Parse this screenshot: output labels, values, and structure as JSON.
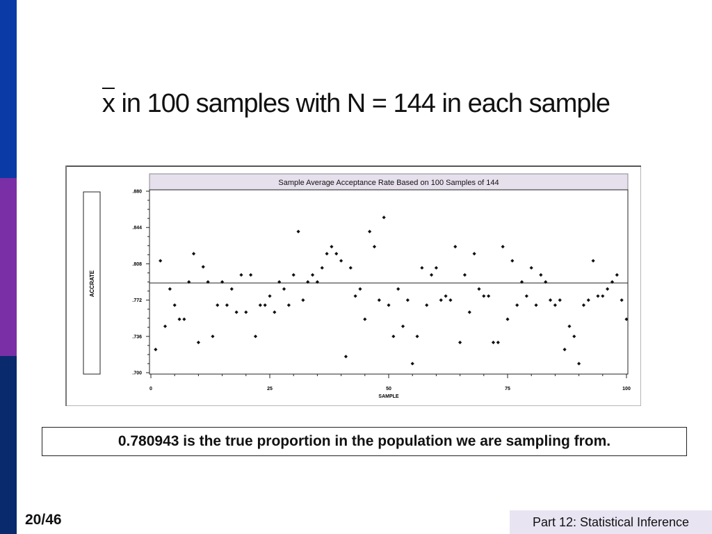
{
  "slide": {
    "title_symbol": "x",
    "title_rest": "in 100 samples with N = 144 in each sample",
    "note": "0.780943 is the true proportion in the population we are sampling from.",
    "page_number": "20/46",
    "footer": "Part 12: Statistical Inference",
    "colors": {
      "sidebar_top": "#0a3aa6",
      "sidebar_mid": "#7a2fa6",
      "sidebar_bottom": "#0a2a6e",
      "footer_bg": "#e9e4f2"
    }
  },
  "chart_data": {
    "type": "scatter",
    "title": "Sample Average Acceptance Rate Based on 100 Samples of 144",
    "xlabel": "SAMPLE",
    "ylabel": "ACCRATE",
    "xlim": [
      0,
      100
    ],
    "ylim": [
      0.7,
      0.88
    ],
    "xticks": [
      0,
      25,
      50,
      75,
      100
    ],
    "xtick_labels": [
      "0",
      "25",
      "50",
      "75",
      "100"
    ],
    "yticks": [
      0.7,
      0.736,
      0.772,
      0.808,
      0.844,
      0.88
    ],
    "ytick_labels": [
      ".700",
      ".736",
      ".772",
      ".808",
      ".844",
      ".880"
    ],
    "reference_line": 0.789,
    "grid": false,
    "x": [
      1,
      2,
      3,
      4,
      5,
      6,
      7,
      8,
      9,
      10,
      11,
      12,
      13,
      14,
      15,
      16,
      17,
      18,
      19,
      20,
      21,
      22,
      23,
      24,
      25,
      26,
      27,
      28,
      29,
      30,
      31,
      32,
      33,
      34,
      35,
      36,
      37,
      38,
      39,
      40,
      41,
      42,
      43,
      44,
      45,
      46,
      47,
      48,
      49,
      50,
      51,
      52,
      53,
      54,
      55,
      56,
      57,
      58,
      59,
      60,
      61,
      62,
      63,
      64,
      65,
      66,
      67,
      68,
      69,
      70,
      71,
      72,
      73,
      74,
      75,
      76,
      77,
      78,
      79,
      80,
      81,
      82,
      83,
      84,
      85,
      86,
      87,
      88,
      89,
      90,
      91,
      92,
      93,
      94,
      95,
      96,
      97,
      98,
      99,
      100
    ],
    "values": [
      0.723,
      0.811,
      0.746,
      0.783,
      0.767,
      0.753,
      0.753,
      0.79,
      0.818,
      0.73,
      0.805,
      0.79,
      0.736,
      0.767,
      0.79,
      0.767,
      0.783,
      0.76,
      0.797,
      0.76,
      0.797,
      0.736,
      0.767,
      0.767,
      0.776,
      0.76,
      0.79,
      0.783,
      0.767,
      0.797,
      0.84,
      0.772,
      0.79,
      0.797,
      0.79,
      0.804,
      0.818,
      0.825,
      0.818,
      0.811,
      0.716,
      0.804,
      0.776,
      0.783,
      0.753,
      0.84,
      0.825,
      0.772,
      0.854,
      0.767,
      0.736,
      0.783,
      0.746,
      0.772,
      0.709,
      0.736,
      0.804,
      0.767,
      0.797,
      0.804,
      0.772,
      0.776,
      0.772,
      0.825,
      0.73,
      0.797,
      0.76,
      0.818,
      0.783,
      0.776,
      0.776,
      0.73,
      0.73,
      0.825,
      0.753,
      0.811,
      0.767,
      0.79,
      0.776,
      0.804,
      0.767,
      0.797,
      0.79,
      0.772,
      0.767,
      0.772,
      0.723,
      0.746,
      0.736,
      0.709,
      0.767,
      0.772,
      0.811,
      0.776,
      0.776,
      0.783,
      0.79,
      0.797,
      0.772,
      0.753
    ]
  }
}
